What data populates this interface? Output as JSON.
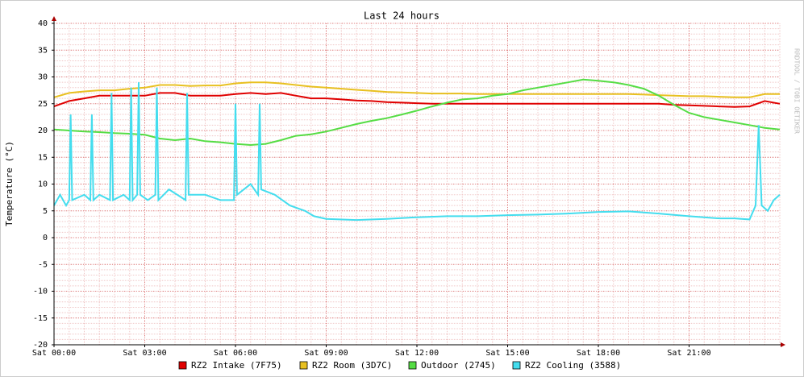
{
  "chart_data": {
    "type": "line",
    "title": "Last 24 hours",
    "ylabel": "Temperature (°C)",
    "watermark": "RRDTOOL / TOBI OETIKER",
    "x": [
      0,
      0.5,
      1,
      1.5,
      2,
      2.5,
      3,
      3.5,
      4,
      4.5,
      5,
      5.5,
      6,
      6.5,
      7,
      7.5,
      8,
      8.5,
      9,
      9.5,
      10,
      10.5,
      11,
      11.5,
      12,
      12.5,
      13,
      13.5,
      14,
      14.5,
      15,
      15.5,
      16,
      16.5,
      17,
      17.5,
      18,
      18.5,
      19,
      19.5,
      20,
      20.5,
      21,
      21.5,
      22,
      22.5,
      23,
      23.5,
      24
    ],
    "xlim": [
      0,
      24
    ],
    "xticks": [
      {
        "value": 0,
        "label": "Sat 00:00"
      },
      {
        "value": 3,
        "label": "Sat 03:00"
      },
      {
        "value": 6,
        "label": "Sat 06:00"
      },
      {
        "value": 9,
        "label": "Sat 09:00"
      },
      {
        "value": 12,
        "label": "Sat 12:00"
      },
      {
        "value": 15,
        "label": "Sat 15:00"
      },
      {
        "value": 18,
        "label": "Sat 18:00"
      },
      {
        "value": 21,
        "label": "Sat 21:00"
      }
    ],
    "ylim": [
      -20,
      40
    ],
    "yticks": [
      -20,
      -15,
      -10,
      -5,
      0,
      5,
      10,
      15,
      20,
      25,
      30,
      35,
      40
    ],
    "grid": true,
    "series": [
      {
        "name": "RZ2 Intake (7F75)",
        "color": "#e00000",
        "values": [
          24.5,
          25.5,
          26,
          26.5,
          26.5,
          26.5,
          26.5,
          27,
          27,
          26.5,
          26.5,
          26.5,
          26.8,
          27,
          26.8,
          27,
          26.5,
          26,
          26,
          25.8,
          25.6,
          25.5,
          25.3,
          25.2,
          25.1,
          25,
          25,
          25,
          25,
          25,
          25,
          25,
          25,
          25,
          25,
          25,
          25,
          25,
          25,
          25,
          25,
          24.8,
          24.7,
          24.6,
          24.5,
          24.4,
          24.5,
          25.5,
          25
        ]
      },
      {
        "name": "RZ2 Room (3D7C)",
        "color": "#e8c020",
        "values": [
          26.2,
          27,
          27.3,
          27.5,
          27.5,
          27.8,
          28,
          28.5,
          28.5,
          28.3,
          28.4,
          28.4,
          28.8,
          29,
          29,
          28.8,
          28.5,
          28.2,
          28,
          27.8,
          27.6,
          27.4,
          27.2,
          27.1,
          27,
          26.9,
          26.9,
          26.9,
          26.8,
          26.8,
          26.8,
          26.8,
          26.8,
          26.8,
          26.8,
          26.8,
          26.8,
          26.8,
          26.8,
          26.7,
          26.6,
          26.5,
          26.4,
          26.4,
          26.3,
          26.2,
          26.2,
          26.8,
          26.8
        ]
      },
      {
        "name": "Outdoor (2745)",
        "color": "#55dd44",
        "values": [
          20.2,
          20,
          19.8,
          19.7,
          19.5,
          19.4,
          19.2,
          18.5,
          18.2,
          18.5,
          18,
          17.8,
          17.5,
          17.3,
          17.5,
          18.2,
          19,
          19.3,
          19.8,
          20.5,
          21.2,
          21.8,
          22.3,
          23,
          23.7,
          24.5,
          25.2,
          25.8,
          26,
          26.5,
          26.8,
          27.5,
          28,
          28.5,
          29,
          29.5,
          29.3,
          29,
          28.5,
          27.8,
          26.5,
          24.8,
          23.3,
          22.5,
          22,
          21.5,
          21,
          20.5,
          20.2
        ]
      },
      {
        "name": "RZ2 Cooling (3588)",
        "color": "#44ddee",
        "x": [
          0,
          0.2,
          0.4,
          0.5,
          0.55,
          0.6,
          1,
          1.2,
          1.25,
          1.3,
          1.5,
          1.85,
          1.9,
          1.95,
          2.3,
          2.5,
          2.55,
          2.6,
          2.75,
          2.8,
          2.85,
          3.1,
          3.35,
          3.4,
          3.45,
          3.8,
          4.35,
          4.4,
          4.45,
          5,
          5.5,
          5.95,
          6,
          6.05,
          6.5,
          6.75,
          6.8,
          6.85,
          7.3,
          7.8,
          8.3,
          8.6,
          9,
          10,
          11,
          12,
          13,
          14,
          15,
          16,
          17,
          18,
          19,
          20,
          21,
          22,
          22.5,
          23,
          23.2,
          23.3,
          23.4,
          23.6,
          23.8,
          24
        ],
        "values": [
          6,
          8,
          6,
          7,
          23,
          7,
          8,
          7,
          23,
          7,
          8,
          7,
          27,
          7,
          8,
          7,
          28,
          7,
          8,
          29,
          8,
          7,
          8,
          28,
          7,
          9,
          7,
          27,
          8,
          8,
          7,
          7,
          25,
          8,
          10,
          8,
          25,
          9,
          8,
          6,
          5,
          4,
          3.5,
          3.3,
          3.5,
          3.8,
          4,
          4,
          4.2,
          4.3,
          4.5,
          4.8,
          4.9,
          4.5,
          4,
          3.6,
          3.6,
          3.4,
          6,
          21,
          6,
          5,
          7,
          8
        ]
      }
    ]
  }
}
